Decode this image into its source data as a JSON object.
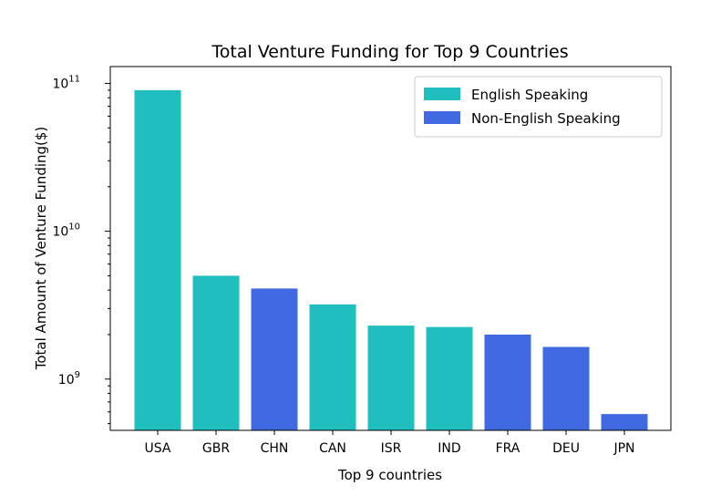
{
  "chart_data": {
    "type": "bar",
    "title": "Total Venture Funding for Top 9 Countries",
    "xlabel": "Top 9 countries",
    "ylabel": "Total Amount of Venture Funding($)",
    "yscale": "log",
    "ylim": [
      450000000,
      130000000000
    ],
    "yticks": [
      {
        "value": 1000000000,
        "base": "10",
        "exp": "9"
      },
      {
        "value": 10000000000,
        "base": "10",
        "exp": "10"
      },
      {
        "value": 100000000000,
        "base": "10",
        "exp": "11"
      }
    ],
    "categories": [
      "USA",
      "GBR",
      "CHN",
      "CAN",
      "ISR",
      "IND",
      "FRA",
      "DEU",
      "JPN"
    ],
    "values": [
      90000000000,
      5000000000,
      4100000000,
      3200000000,
      2300000000,
      2250000000,
      2000000000,
      1650000000,
      580000000
    ],
    "groups": [
      "English Speaking",
      "English Speaking",
      "Non-English Speaking",
      "English Speaking",
      "English Speaking",
      "English Speaking",
      "Non-English Speaking",
      "Non-English Speaking",
      "Non-English Speaking"
    ],
    "legend": {
      "placement": "top-right",
      "entries": [
        {
          "label": "English Speaking",
          "color": "#20BEBE"
        },
        {
          "label": "Non-English Speaking",
          "color": "#4169E1"
        }
      ]
    },
    "grid": false
  }
}
